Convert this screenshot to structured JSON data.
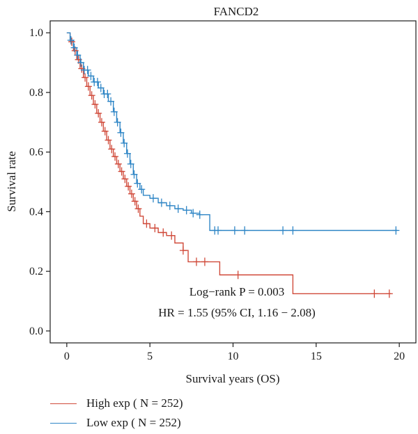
{
  "chart_data": {
    "type": "line",
    "title": "FANCD2",
    "xlabel": "Survival years (OS)",
    "ylabel": "Survival rate",
    "xlim": [
      -1,
      21
    ],
    "ylim": [
      -0.04,
      1.04
    ],
    "xticks": [
      0,
      5,
      10,
      15,
      20
    ],
    "xtick_labels": [
      "0",
      "5",
      "10",
      "15",
      "20"
    ],
    "yticks": [
      0.0,
      0.2,
      0.4,
      0.6,
      0.8,
      1.0
    ],
    "ytick_labels": [
      "0.0",
      "0.2",
      "0.4",
      "0.6",
      "0.8",
      "1.0"
    ],
    "annotations": {
      "logrank": "Log−rank P = 0.003",
      "hr": "HR = 1.55 (95% CI, 1.16 − 2.08)"
    },
    "legend_position": "bottom-left, below plot",
    "series": [
      {
        "name": "High exp ( N = 252)",
        "color": "#d04a3a",
        "step_x": [
          0,
          0.2,
          0.4,
          0.6,
          0.8,
          1.0,
          1.2,
          1.4,
          1.6,
          1.8,
          2.0,
          2.2,
          2.4,
          2.6,
          2.8,
          3.0,
          3.2,
          3.4,
          3.6,
          3.8,
          4.0,
          4.2,
          4.4,
          4.6,
          5.0,
          5.5,
          6.0,
          6.5,
          7.0,
          7.3,
          9.2,
          13.6
        ],
        "step_y": [
          1.0,
          0.97,
          0.94,
          0.91,
          0.88,
          0.85,
          0.82,
          0.79,
          0.76,
          0.73,
          0.7,
          0.67,
          0.64,
          0.61,
          0.585,
          0.56,
          0.535,
          0.51,
          0.485,
          0.46,
          0.435,
          0.41,
          0.385,
          0.36,
          0.345,
          0.33,
          0.32,
          0.295,
          0.27,
          0.232,
          0.188,
          0.125
        ],
        "end_x": 19.5,
        "censor_x": [
          0.3,
          0.5,
          0.7,
          0.9,
          1.1,
          1.3,
          1.5,
          1.7,
          1.9,
          2.1,
          2.3,
          2.5,
          2.7,
          2.9,
          3.1,
          3.3,
          3.5,
          3.7,
          3.9,
          4.1,
          4.3,
          4.8,
          5.3,
          5.8,
          6.3,
          7.0,
          7.8,
          8.3,
          10.3,
          18.5,
          19.4
        ]
      },
      {
        "name": "Low exp ( N = 252)",
        "color": "#2f86c6",
        "step_x": [
          0,
          0.2,
          0.4,
          0.6,
          0.8,
          1.0,
          1.3,
          1.6,
          1.9,
          2.2,
          2.5,
          2.8,
          3.0,
          3.2,
          3.4,
          3.6,
          3.8,
          4.0,
          4.2,
          4.4,
          4.6,
          5.0,
          5.5,
          6.0,
          6.5,
          7.0,
          7.5,
          8.0,
          8.6
        ],
        "step_y": [
          1.0,
          0.975,
          0.95,
          0.925,
          0.9,
          0.875,
          0.855,
          0.835,
          0.815,
          0.795,
          0.77,
          0.735,
          0.7,
          0.665,
          0.63,
          0.595,
          0.56,
          0.525,
          0.495,
          0.475,
          0.455,
          0.445,
          0.43,
          0.42,
          0.41,
          0.405,
          0.395,
          0.39,
          0.337
        ],
        "end_x": 19.9,
        "censor_x": [
          0.25,
          0.45,
          0.65,
          0.85,
          1.05,
          1.25,
          1.45,
          1.65,
          1.85,
          2.05,
          2.25,
          2.45,
          2.65,
          2.85,
          3.05,
          3.25,
          3.45,
          3.65,
          3.85,
          4.05,
          4.25,
          4.5,
          5.2,
          5.7,
          6.2,
          6.7,
          7.2,
          7.6,
          8.0,
          8.9,
          9.1,
          10.1,
          10.7,
          13.0,
          13.6,
          19.8
        ]
      }
    ]
  }
}
